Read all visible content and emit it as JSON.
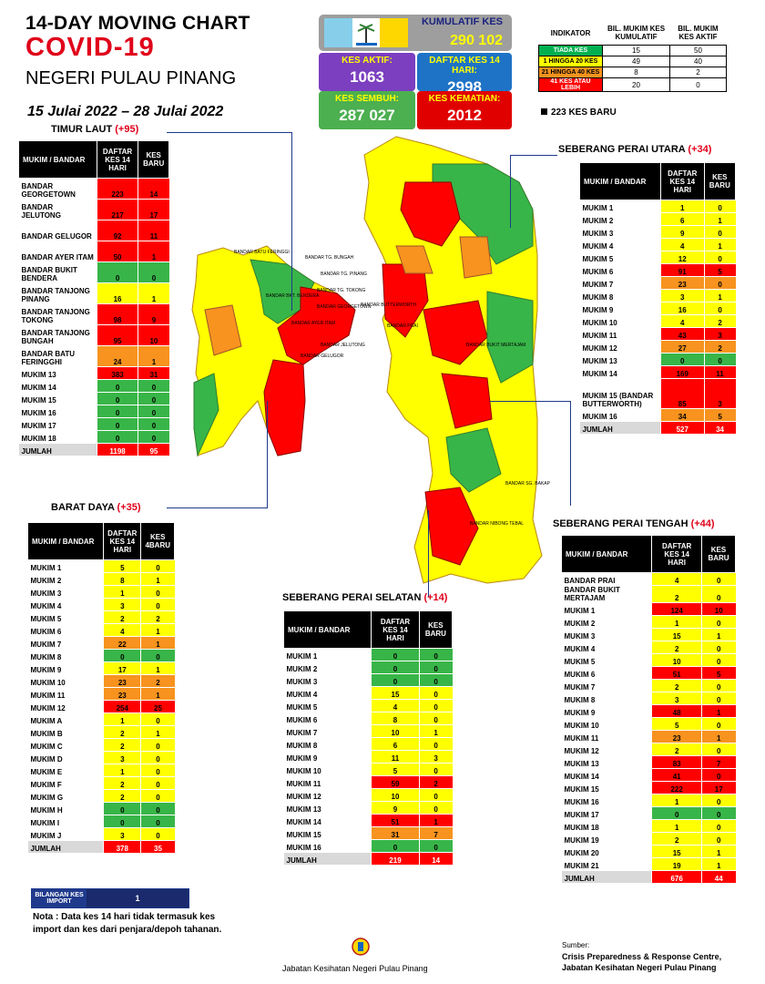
{
  "header": {
    "line1": "14-DAY MOVING CHART",
    "line2": "COVID-19",
    "line3": "NEGERI PULAU PINANG",
    "date_range": "15 Julai 2022 – 28 Julai 2022"
  },
  "stats": {
    "kumulatif_label": "KUMULATIF KES",
    "kumulatif_value": "290 102",
    "aktif_label": "KES AKTIF:",
    "aktif_value": "1063",
    "daftar14_label": "DAFTAR KES 14 HARI:",
    "daftar14_value": "2998",
    "sembuh_label": "KES SEMBUH:",
    "sembuh_value": "287 027",
    "kematian_label": "KES KEMATIAN:",
    "kematian_value": "2012"
  },
  "indicator": {
    "headers": [
      "INDIKATOR",
      "BIL. MUKIM KES KUMULATIF",
      "BIL. MUKIM KES AKTIF"
    ],
    "rows": [
      {
        "label": "TIADA KES",
        "cum": "15",
        "act": "50",
        "color": "#00b050",
        "fg": "#ffffff"
      },
      {
        "label": "1 HINGGA 20 KES",
        "cum": "49",
        "act": "40",
        "color": "#ffff00",
        "fg": "#000000"
      },
      {
        "label": "21 HINGGA 40 KES",
        "cum": "8",
        "act": "2",
        "color": "#f7931e",
        "fg": "#000000"
      },
      {
        "label": "41 KES ATAU LEBIH",
        "cum": "20",
        "act": "0",
        "color": "#ff0000",
        "fg": "#ffffff"
      }
    ],
    "new_cases": "223 KES BARU"
  },
  "colors": {
    "green": "#38b548",
    "yellow": "#ffff00",
    "orange": "#f7931e",
    "red": "#ff0000",
    "navy": "#1f3a8c"
  },
  "tables": [
    {
      "id": "timur-laut",
      "title": "TIMUR LAUT ",
      "plus": "(+95)",
      "headers": [
        "MUKIM / BANDAR",
        "DAFTAR KES 14 HARI",
        "KES BARU"
      ],
      "rows": [
        [
          "BANDAR GEORGETOWN",
          "223",
          "14",
          "r"
        ],
        [
          "BANDAR JELUTONG",
          "217",
          "17",
          "r"
        ],
        [
          "BANDAR GELUGOR",
          "92",
          "11",
          "r"
        ],
        [
          "BANDAR AYER ITAM",
          "50",
          "1",
          "r"
        ],
        [
          "BANDAR BUKIT BENDERA",
          "0",
          "0",
          "g"
        ],
        [
          "BANDAR TANJONG PINANG",
          "16",
          "1",
          "y"
        ],
        [
          "BANDAR TANJONG TOKONG",
          "98",
          "9",
          "r"
        ],
        [
          "BANDAR TANJONG BUNGAH",
          "95",
          "10",
          "r"
        ],
        [
          "BANDAR BATU FERINGGHI",
          "24",
          "1",
          "o"
        ],
        [
          "MUKIM 13",
          "383",
          "31",
          "r"
        ],
        [
          "MUKIM 14",
          "0",
          "0",
          "g"
        ],
        [
          "MUKIM 15",
          "0",
          "0",
          "g"
        ],
        [
          "MUKIM 16",
          "0",
          "0",
          "g"
        ],
        [
          "MUKIM 17",
          "0",
          "0",
          "g"
        ],
        [
          "MUKIM 18",
          "0",
          "0",
          "g"
        ]
      ],
      "total": [
        "JUMLAH",
        "1198",
        "95"
      ]
    },
    {
      "id": "barat-daya",
      "title": "BARAT DAYA ",
      "plus": "(+35)",
      "headers": [
        "MUKIM / BANDAR",
        "DAFTAR KES 14 HARI",
        "KES 4BARU"
      ],
      "rows": [
        [
          "MUKIM 1",
          "5",
          "0",
          "y"
        ],
        [
          "MUKIM 2",
          "8",
          "1",
          "y"
        ],
        [
          "MUKIM 3",
          "1",
          "0",
          "y"
        ],
        [
          "MUKIM 4",
          "3",
          "0",
          "y"
        ],
        [
          "MUKIM 5",
          "2",
          "2",
          "y"
        ],
        [
          "MUKIM 6",
          "4",
          "1",
          "y"
        ],
        [
          "MUKIM 7",
          "22",
          "1",
          "o"
        ],
        [
          "MUKIM 8",
          "0",
          "0",
          "g"
        ],
        [
          "MUKIM 9",
          "17",
          "1",
          "y"
        ],
        [
          "MUKIM 10",
          "23",
          "2",
          "o"
        ],
        [
          "MUKIM 11",
          "23",
          "1",
          "o"
        ],
        [
          "MUKIM 12",
          "254",
          "25",
          "r"
        ],
        [
          "MUKIM A",
          "1",
          "0",
          "y"
        ],
        [
          "MUKIM B",
          "2",
          "1",
          "y"
        ],
        [
          "MUKIM C",
          "2",
          "0",
          "y"
        ],
        [
          "MUKIM D",
          "3",
          "0",
          "y"
        ],
        [
          "MUKIM E",
          "1",
          "0",
          "y"
        ],
        [
          "MUKIM F",
          "2",
          "0",
          "y"
        ],
        [
          "MUKIM G",
          "2",
          "0",
          "y"
        ],
        [
          "MUKIM H",
          "0",
          "0",
          "g"
        ],
        [
          "MUKIM I",
          "0",
          "0",
          "g"
        ],
        [
          "MUKIM J",
          "3",
          "0",
          "y"
        ]
      ],
      "total": [
        "JUMLAH",
        "378",
        "35"
      ]
    },
    {
      "id": "sp-utara",
      "title": "SEBERANG PERAI UTARA ",
      "plus": "(+34)",
      "headers": [
        "MUKIM / BANDAR",
        "DAFTAR KES 14 HARI",
        "KES BARU"
      ],
      "rows": [
        [
          "MUKIM 1",
          "1",
          "0",
          "y"
        ],
        [
          "MUKIM 2",
          "6",
          "1",
          "y"
        ],
        [
          "MUKIM 3",
          "9",
          "0",
          "y"
        ],
        [
          "MUKIM 4",
          "4",
          "1",
          "y"
        ],
        [
          "MUKIM 5",
          "12",
          "0",
          "y"
        ],
        [
          "MUKIM 6",
          "91",
          "5",
          "r"
        ],
        [
          "MUKIM 7",
          "23",
          "0",
          "o"
        ],
        [
          "MUKIM 8",
          "3",
          "1",
          "y"
        ],
        [
          "MUKIM 9",
          "16",
          "0",
          "y"
        ],
        [
          "MUKIM 10",
          "4",
          "2",
          "y"
        ],
        [
          "MUKIM 11",
          "43",
          "3",
          "r"
        ],
        [
          "MUKIM 12",
          "27",
          "2",
          "o"
        ],
        [
          "MUKIM 13",
          "0",
          "0",
          "g"
        ],
        [
          "MUKIM 14",
          "169",
          "11",
          "r"
        ],
        [
          "MUKIM 15 (BANDAR BUTTERWORTH)",
          "85",
          "3",
          "r"
        ],
        [
          "MUKIM 16",
          "34",
          "5",
          "o"
        ]
      ],
      "total": [
        "JUMLAH",
        "527",
        "34"
      ]
    },
    {
      "id": "sp-selatan",
      "title": "SEBERANG PERAI SELATAN ",
      "plus": "(+14)",
      "headers": [
        "MUKIM / BANDAR",
        "DAFTAR KES 14 HARI",
        "KES BARU"
      ],
      "rows": [
        [
          "MUKIM 1",
          "0",
          "0",
          "g"
        ],
        [
          "MUKIM 2",
          "0",
          "0",
          "g"
        ],
        [
          "MUKIM 3",
          "0",
          "0",
          "g"
        ],
        [
          "MUKIM 4",
          "15",
          "0",
          "y"
        ],
        [
          "MUKIM 5",
          "4",
          "0",
          "y"
        ],
        [
          "MUKIM 6",
          "8",
          "0",
          "y"
        ],
        [
          "MUKIM 7",
          "10",
          "1",
          "y"
        ],
        [
          "MUKIM 8",
          "6",
          "0",
          "y"
        ],
        [
          "MUKIM 9",
          "11",
          "3",
          "y"
        ],
        [
          "MUKIM 10",
          "5",
          "0",
          "y"
        ],
        [
          "MUKIM 11",
          "59",
          "2",
          "r"
        ],
        [
          "MUKIM 12",
          "10",
          "0",
          "y"
        ],
        [
          "MUKIM 13",
          "9",
          "0",
          "y"
        ],
        [
          "MUKIM 14",
          "51",
          "1",
          "r"
        ],
        [
          "MUKIM 15",
          "31",
          "7",
          "o"
        ],
        [
          "MUKIM 16",
          "0",
          "0",
          "g"
        ]
      ],
      "total": [
        "JUMLAH",
        "219",
        "14"
      ]
    },
    {
      "id": "sp-tengah",
      "title": "SEBERANG PERAI TENGAH ",
      "plus": "(+44)",
      "headers": [
        "MUKIM / BANDAR",
        "DAFTAR KES 14 HARI",
        "KES BARU"
      ],
      "rows": [
        [
          "BANDAR PRAI",
          "4",
          "0",
          "y"
        ],
        [
          "BANDAR BUKIT MERTAJAM",
          "2",
          "0",
          "y"
        ],
        [
          "MUKIM 1",
          "124",
          "10",
          "r"
        ],
        [
          "MUKIM 2",
          "1",
          "0",
          "y"
        ],
        [
          "MUKIM 3",
          "15",
          "1",
          "y"
        ],
        [
          "MUKIM 4",
          "2",
          "0",
          "y"
        ],
        [
          "MUKIM 5",
          "10",
          "0",
          "y"
        ],
        [
          "MUKIM 6",
          "51",
          "5",
          "r"
        ],
        [
          "MUKIM 7",
          "2",
          "0",
          "y"
        ],
        [
          "MUKIM 8",
          "3",
          "0",
          "y"
        ],
        [
          "MUKIM 9",
          "48",
          "1",
          "r"
        ],
        [
          "MUKIM 10",
          "5",
          "0",
          "y"
        ],
        [
          "MUKIM 11",
          "23",
          "1",
          "o"
        ],
        [
          "MUKIM 12",
          "2",
          "0",
          "y"
        ],
        [
          "MUKIM 13",
          "83",
          "7",
          "r"
        ],
        [
          "MUKIM 14",
          "41",
          "0",
          "r"
        ],
        [
          "MUKIM 15",
          "222",
          "17",
          "r"
        ],
        [
          "MUKIM 16",
          "1",
          "0",
          "y"
        ],
        [
          "MUKIM 17",
          "0",
          "0",
          "g"
        ],
        [
          "MUKIM 18",
          "1",
          "0",
          "y"
        ],
        [
          "MUKIM 19",
          "2",
          "0",
          "y"
        ],
        [
          "MUKIM 20",
          "15",
          "1",
          "y"
        ],
        [
          "MUKIM 21",
          "19",
          "1",
          "y"
        ]
      ],
      "total": [
        "JUMLAH",
        "676",
        "44"
      ]
    }
  ],
  "map_labels": {
    "island": [
      "BANDAR BATU FERINGGI",
      "BANDAR TG. BUNGAH",
      "BANDAR TG. PINANG",
      "BANDAR TG. TOKONG",
      "BANDAR BKT. BENDERA",
      "BANDAR AYER ITAM",
      "BANDAR JELUTONG",
      "BANDAR GEORGETOWN",
      "BANDAR GELUGOR"
    ],
    "mainland": [
      "BANDAR BUTTERWORTH",
      "BANDAR PRAI",
      "BANDAR BUKIT MERTAJAM",
      "BANDAR SG. BAKAP",
      "BANDAR NIBONG TEBAL"
    ]
  },
  "import": {
    "label": "BILANGAN KES IMPORT",
    "value": "1"
  },
  "note": "Nota : Data kes 14 hari tidak termasuk kes import dan kes dari penjara/depoh tahanan.",
  "source": {
    "label": "Sumber:",
    "line1": "Crisis Preparedness & Response Centre,",
    "line2": "Jabatan Kesihatan Negeri Pulau Pinang"
  },
  "department": "Jabatan Kesihatan Negeri Pulau Pinang"
}
